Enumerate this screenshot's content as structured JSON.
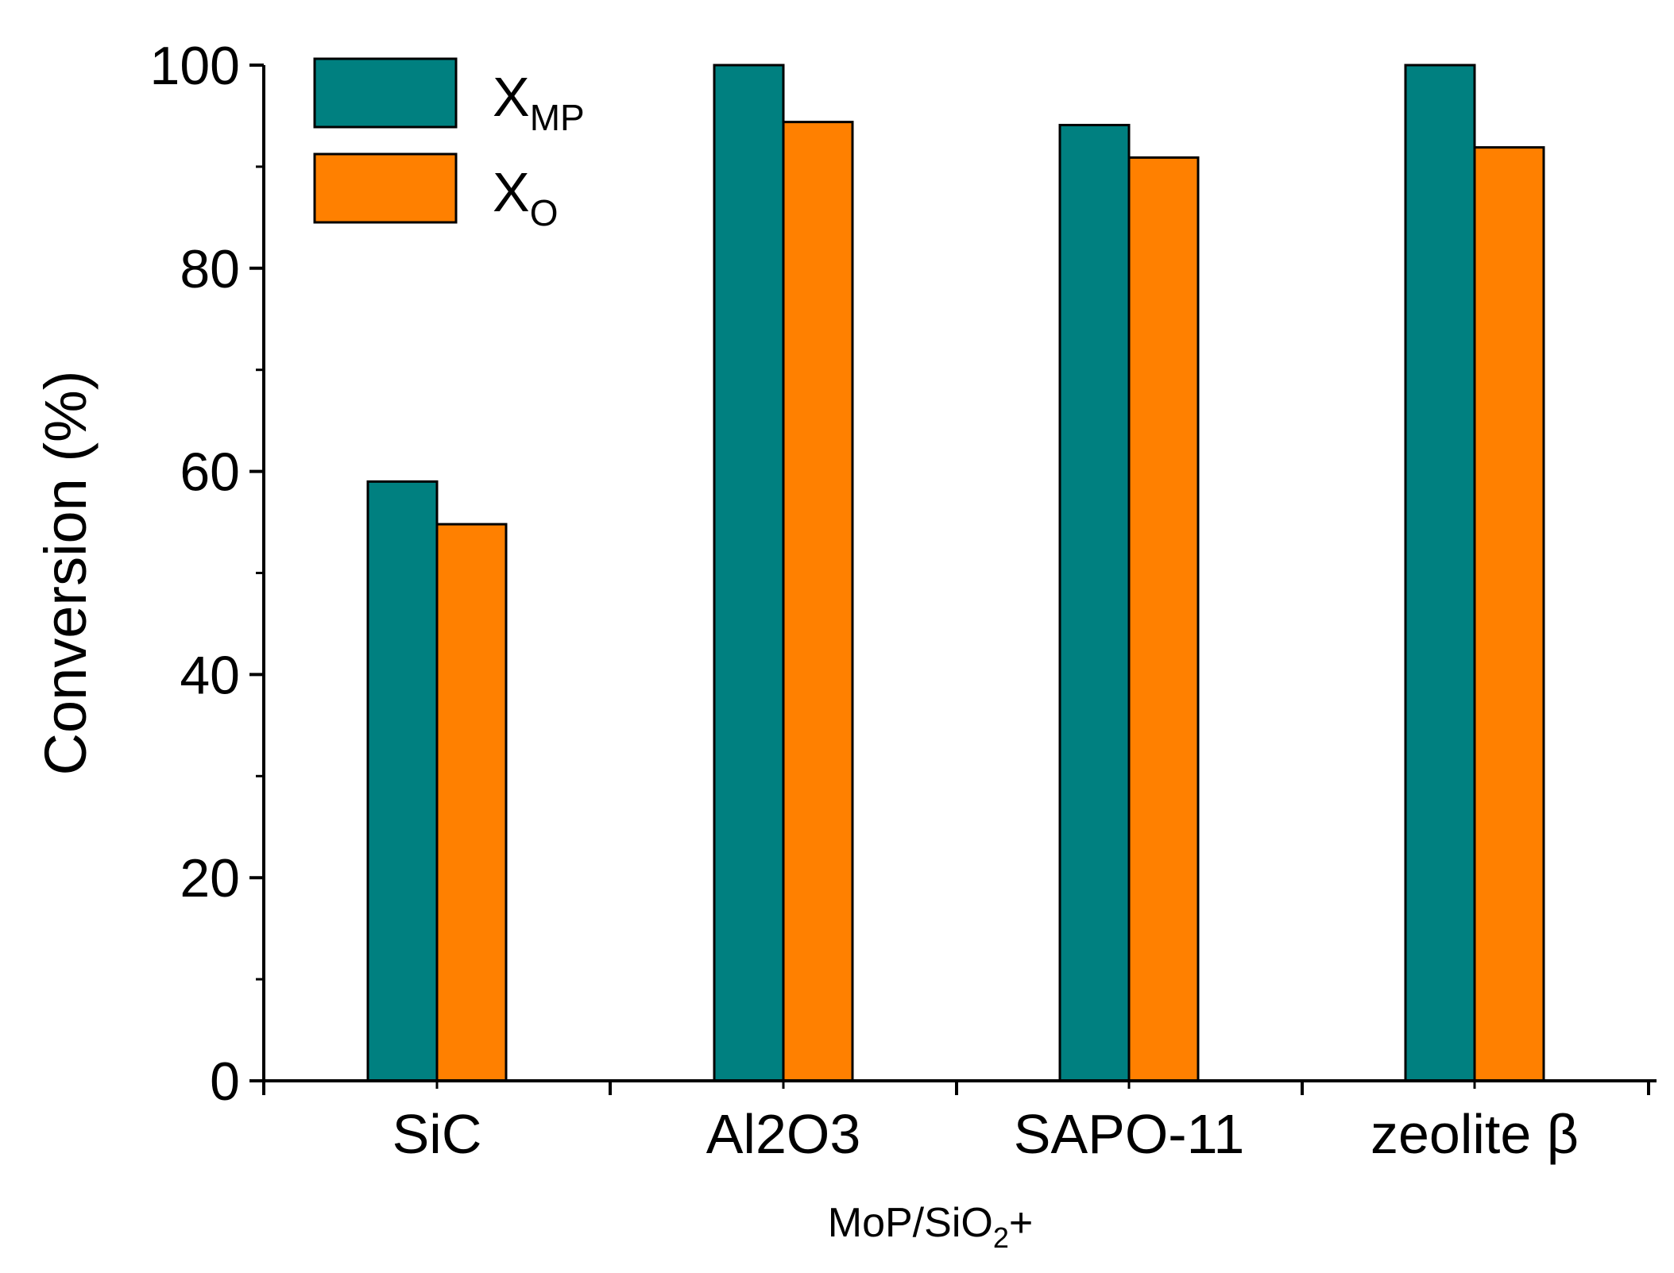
{
  "chart_data": {
    "type": "bar",
    "title": "",
    "categories": [
      "SiC",
      "Al2O3",
      "SAPO-11",
      "zeolite β"
    ],
    "series": [
      {
        "name": "X",
        "subscript": "MP",
        "color": "#008080",
        "values": [
          59.0,
          100.0,
          94.1,
          100.0
        ]
      },
      {
        "name": "X",
        "subscript": "O",
        "color": "#FF8000",
        "values": [
          54.8,
          94.4,
          90.9,
          91.9
        ]
      }
    ],
    "xlabel": {
      "main": "MoP/SiO",
      "subscript": "2",
      "suffix": "+"
    },
    "ylabel": "Conversion (%)",
    "ylim": [
      0,
      100
    ],
    "yticks": [
      0,
      20,
      40,
      60,
      80,
      100
    ],
    "minor_yticks": [
      10,
      30,
      50,
      70,
      90
    ],
    "legend_position": "top-left",
    "grid": false
  }
}
